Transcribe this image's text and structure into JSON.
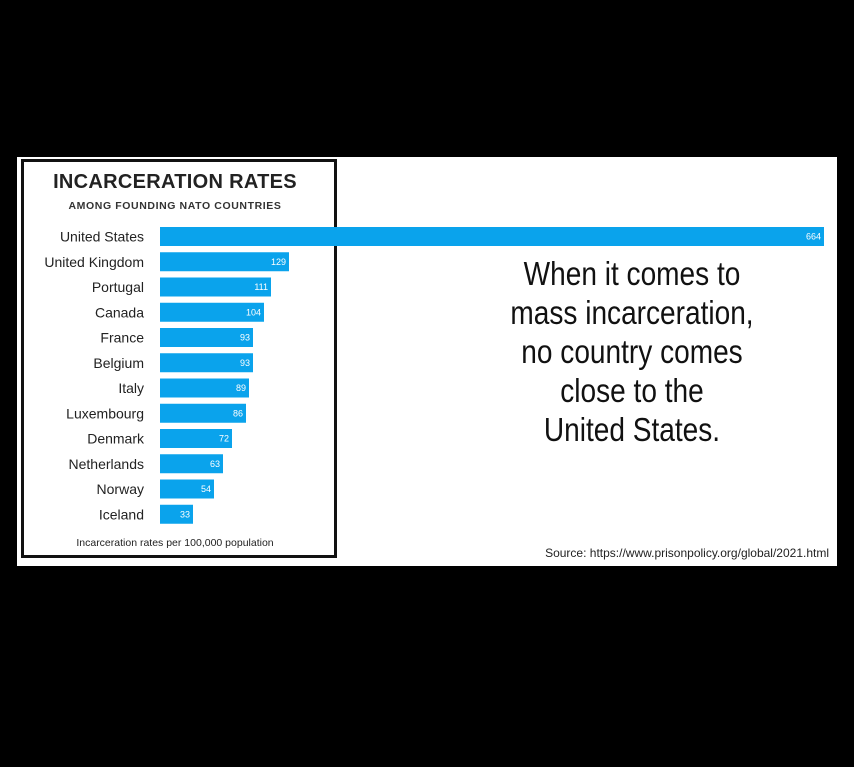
{
  "chart_data": {
    "type": "bar",
    "orientation": "horizontal",
    "title": "INCARCERATION RATES",
    "subtitle": "AMONG FOUNDING NATO COUNTRIES",
    "footnote": "Incarceration rates per 100,000 population",
    "categories": [
      "United States",
      "United Kingdom",
      "Portugal",
      "Canada",
      "France",
      "Belgium",
      "Italy",
      "Luxembourg",
      "Denmark",
      "Netherlands",
      "Norway",
      "Iceland"
    ],
    "values": [
      664,
      129,
      111,
      104,
      93,
      93,
      89,
      86,
      72,
      63,
      54,
      33
    ],
    "value_labels": [
      "664",
      "129",
      "111",
      "104",
      "93",
      "93",
      "89",
      "86",
      "72",
      "63",
      "54",
      "33"
    ],
    "bar_color": "#0aa3ec",
    "xlim": [
      0,
      664
    ],
    "grid": false,
    "legend": "none"
  },
  "message": {
    "lines": [
      "When it comes to",
      "mass incarceration,",
      "no country comes",
      "close to the",
      "United States."
    ]
  },
  "source": "Source: https://www.prisonpolicy.org/global/2021.html"
}
